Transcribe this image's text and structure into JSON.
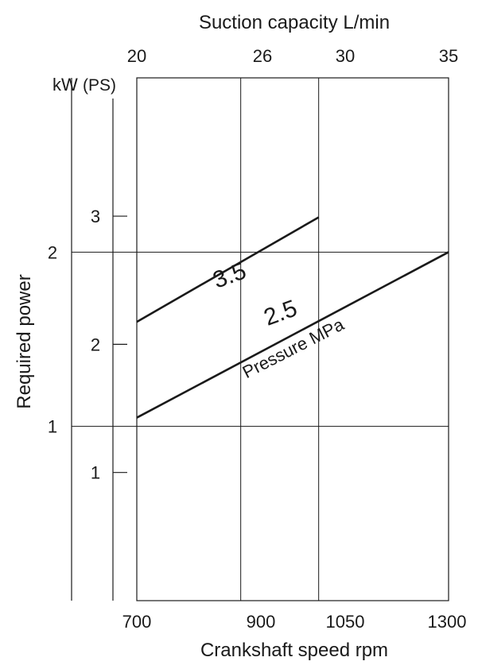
{
  "chart_data": {
    "type": "line",
    "title": "",
    "top_axis": {
      "label": "Suction capacity L/min",
      "ticks": [
        "20",
        "26",
        "30",
        "35"
      ]
    },
    "bottom_axis": {
      "label": "Crankshaft speed rpm",
      "ticks": [
        700,
        900,
        1050,
        1300
      ],
      "tick_labels": [
        "700",
        "900",
        "1050",
        "1300"
      ],
      "range": [
        700,
        1300
      ]
    },
    "ylabel": "Required power",
    "y_units": {
      "kw": "kW",
      "ps": "(PS)"
    },
    "kw_axis": {
      "ticks": [
        1,
        2
      ],
      "tick_labels": [
        "1",
        "2"
      ]
    },
    "ps_axis": {
      "ticks": [
        1,
        2,
        3
      ],
      "tick_labels": [
        "1",
        "2",
        "3"
      ]
    },
    "y_range_kw": [
      0,
      3
    ],
    "grid": true,
    "series": [
      {
        "name": "3.5",
        "x": [
          700,
          1050
        ],
        "y": [
          1.6,
          2.2
        ]
      },
      {
        "name": "2.5",
        "x": [
          700,
          1300
        ],
        "y": [
          1.05,
          2.0
        ]
      }
    ],
    "annotation": "Pressure MPa"
  }
}
